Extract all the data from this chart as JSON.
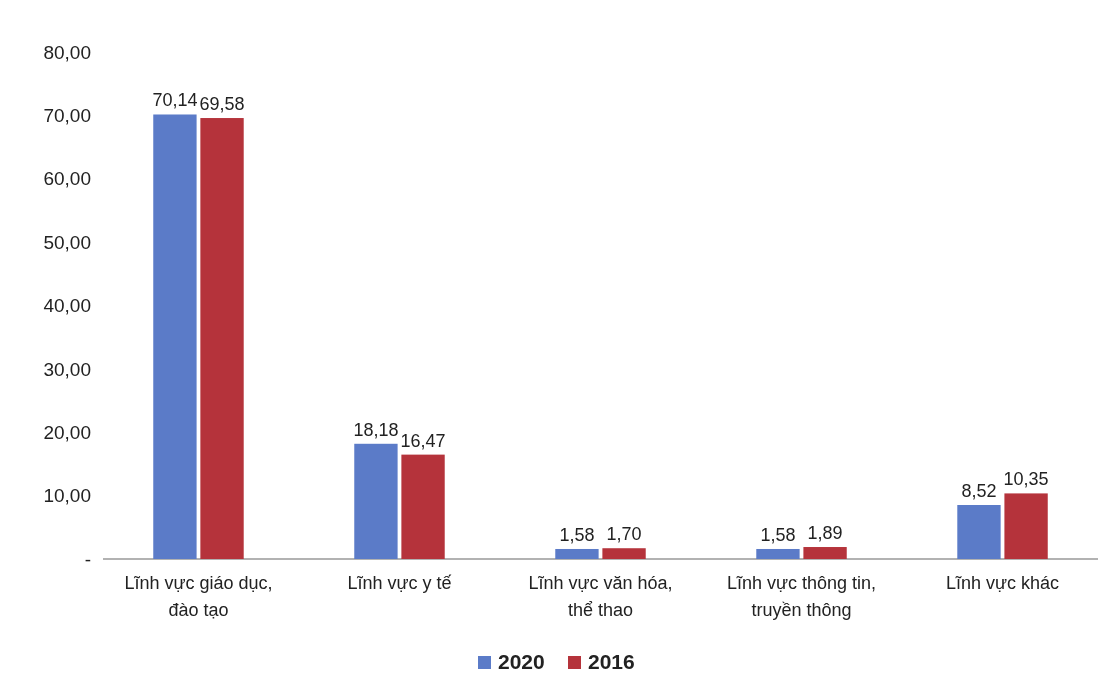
{
  "chart_data": {
    "type": "bar",
    "categories": [
      "Lĩnh vực giáo dục, đào tạo",
      "Lĩnh vực y tế",
      "Lĩnh vực văn hóa, thể thao",
      "Lĩnh vực thông tin, truyền thông",
      "Lĩnh vực khác"
    ],
    "series": [
      {
        "name": "2020",
        "color": "#5b7bc8",
        "values": [
          70.14,
          18.18,
          1.58,
          1.58,
          8.52
        ],
        "value_labels": [
          "70,14",
          "18,18",
          "1,58",
          "1,58",
          "8,52"
        ]
      },
      {
        "name": "2016",
        "color": "#b5333b",
        "values": [
          69.58,
          16.47,
          1.7,
          1.89,
          10.35
        ],
        "value_labels": [
          "69,58",
          "16,47",
          "1,70",
          "1,89",
          "10,35"
        ]
      }
    ],
    "ylim": [
      0,
      80
    ],
    "yticks": [
      {
        "value": 0,
        "label": "-"
      },
      {
        "value": 10,
        "label": "10,00"
      },
      {
        "value": 20,
        "label": "20,00"
      },
      {
        "value": 30,
        "label": "30,00"
      },
      {
        "value": 40,
        "label": "40,00"
      },
      {
        "value": 50,
        "label": "50,00"
      },
      {
        "value": 60,
        "label": "60,00"
      },
      {
        "value": 70,
        "label": "70,00"
      },
      {
        "value": 80,
        "label": "80,00"
      }
    ],
    "grid": false,
    "legend": "bottom"
  }
}
